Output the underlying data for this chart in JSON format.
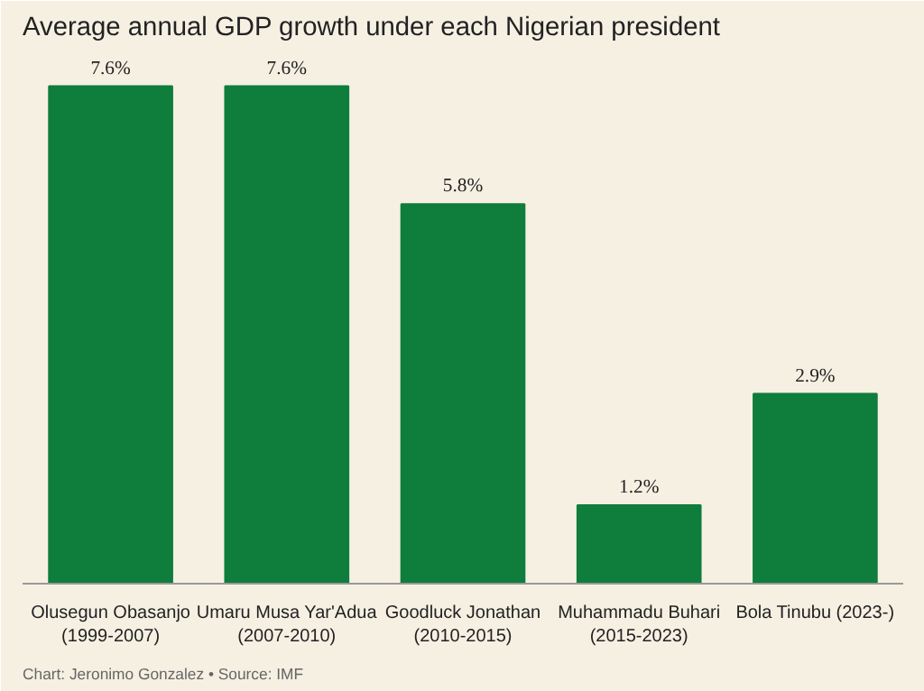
{
  "chart_data": {
    "type": "bar",
    "title": "Average annual GDP growth under each Nigerian president",
    "categories": [
      "Olusegun Obasanjo\n(1999-2007)",
      "Umaru Musa Yar'Adua\n(2007-2010)",
      "Goodluck Jonathan\n(2010-2015)",
      "Muhammadu Buhari\n(2015-2023)",
      "Bola Tinubu (2023-)"
    ],
    "values": [
      7.6,
      7.6,
      5.8,
      1.2,
      2.9
    ],
    "value_labels": [
      "7.6%",
      "7.6%",
      "5.8%",
      "1.2%",
      "2.9%"
    ],
    "color": "#0f7d3c",
    "grid": false,
    "annotations": [
      "Chart: Jeronimo Gonzalez • Source: IMF"
    ]
  }
}
